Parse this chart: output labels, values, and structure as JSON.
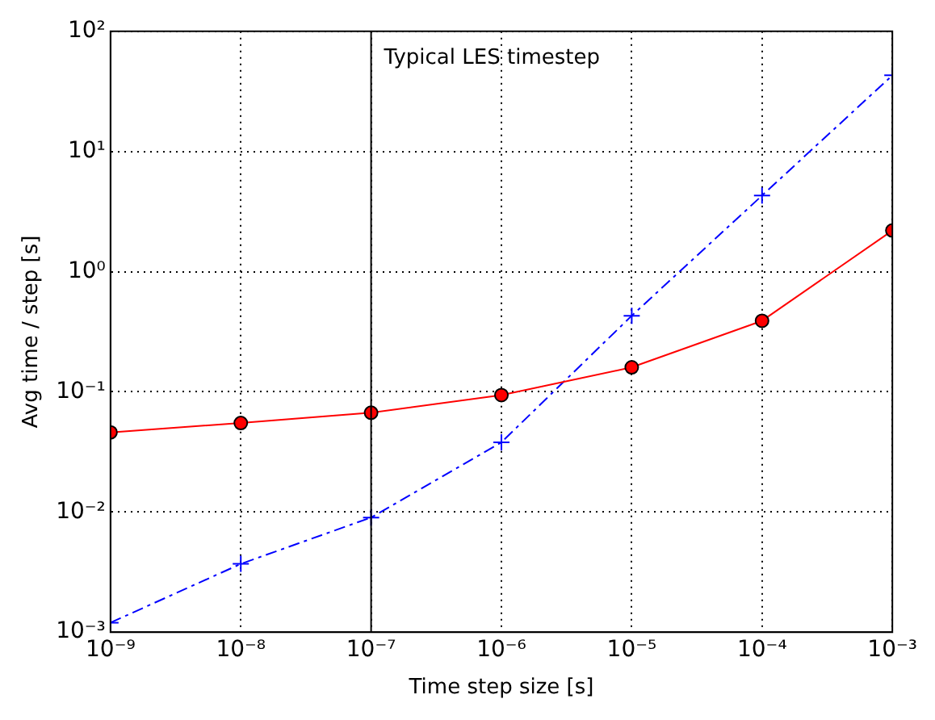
{
  "chart_data": {
    "type": "line",
    "xlabel": "Time step size [s]",
    "ylabel": "Avg time / step [s]",
    "x": [
      1e-09,
      1e-08,
      1e-07,
      1e-06,
      1e-05,
      0.0001,
      0.001
    ],
    "series": [
      {
        "color": "#ff0000",
        "marker": "circle",
        "line_style": "solid",
        "values": [
          0.046,
          0.055,
          0.067,
          0.094,
          0.16,
          0.39,
          2.2
        ]
      },
      {
        "color": "#0000ff",
        "marker": "cross",
        "line_style": "dashed",
        "values": [
          0.0012,
          0.0037,
          0.009,
          0.038,
          0.43,
          4.3,
          43
        ]
      }
    ],
    "log": "xy",
    "xlim": [
      1e-09,
      0.001
    ],
    "ylim": [
      0.001,
      100
    ],
    "xticks": [
      {
        "value": 1e-09,
        "label": "10⁻⁹"
      },
      {
        "value": 1e-08,
        "label": "10⁻⁸"
      },
      {
        "value": 1e-07,
        "label": "10⁻⁷"
      },
      {
        "value": 1e-06,
        "label": "10⁻⁶"
      },
      {
        "value": 1e-05,
        "label": "10⁻⁵"
      },
      {
        "value": 0.0001,
        "label": "10⁻⁴"
      },
      {
        "value": 0.001,
        "label": "10⁻³"
      }
    ],
    "yticks": [
      {
        "value": 0.001,
        "label": "10⁻³"
      },
      {
        "value": 0.01,
        "label": "10⁻²"
      },
      {
        "value": 0.1,
        "label": "10⁻¹"
      },
      {
        "value": 1,
        "label": "10⁰"
      },
      {
        "value": 10,
        "label": "10¹"
      },
      {
        "value": 100,
        "label": "10²"
      }
    ],
    "grid": true,
    "legend": false,
    "ref_lines": [
      {
        "axis": "x",
        "value": 1e-07,
        "label": "Typical LES timestep",
        "color": "#000000",
        "line_style": "solid"
      }
    ]
  }
}
